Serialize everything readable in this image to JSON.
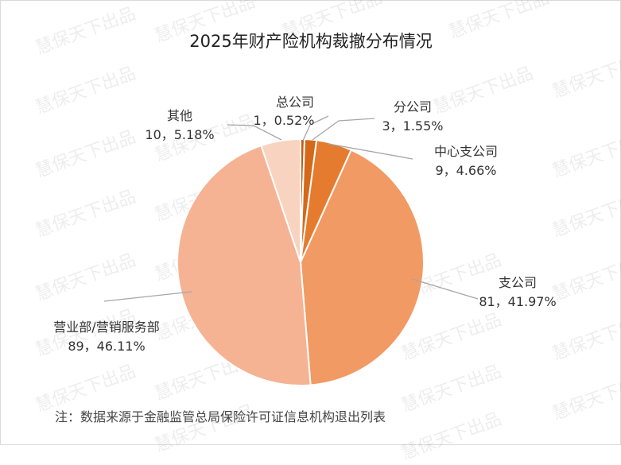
{
  "chart_data": {
    "type": "pie",
    "title": "2025年财产险机构裁撤分布情况",
    "slices": [
      {
        "name": "总公司",
        "value": 1,
        "percent": "0.52%",
        "color": "#c55a11"
      },
      {
        "name": "分公司",
        "value": 3,
        "percent": "1.55%",
        "color": "#d4691a"
      },
      {
        "name": "中心支公司",
        "value": 9,
        "percent": "4.66%",
        "color": "#e57b2f"
      },
      {
        "name": "支公司",
        "value": 81,
        "percent": "41.97%",
        "color": "#f29a64"
      },
      {
        "name": "营业部/营销服务部",
        "value": 89,
        "percent": "46.11%",
        "color": "#f5b393"
      },
      {
        "name": "其他",
        "value": 10,
        "percent": "5.18%",
        "color": "#f8d3c0"
      }
    ],
    "label_separator": "，",
    "note": "注：数据来源于金融监管总局保险许可证信息机构退出列表"
  },
  "watermark": "慧保天下出品"
}
